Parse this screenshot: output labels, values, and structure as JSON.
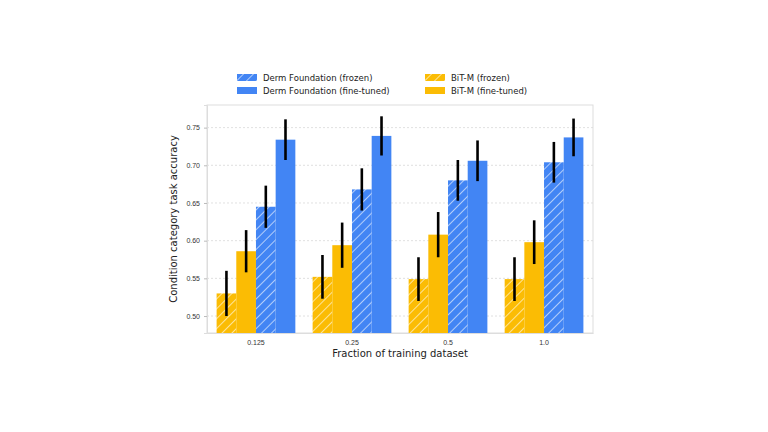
{
  "chart_data": {
    "type": "bar",
    "x_label": "Fraction of training dataset",
    "y_label": "Condition category task accuracy",
    "categories": [
      "0.125",
      "0.25",
      "0.5",
      "1.0"
    ],
    "series": [
      {
        "name": "BiT-M (frozen)",
        "color": "#fbbc04",
        "marker": "hatch",
        "values": [
          0.53,
          0.552,
          0.549,
          0.549
        ],
        "errors": [
          0.03,
          0.029,
          0.029,
          0.029
        ]
      },
      {
        "name": "BiT-M (fine-tuned)",
        "color": "#fbbc04",
        "values": [
          0.586,
          0.594,
          0.608,
          0.598
        ],
        "errors": [
          0.028,
          0.03,
          0.03,
          0.029
        ]
      },
      {
        "name": "Derm Foundation (frozen)",
        "color": "#4285f4",
        "marker": "hatch",
        "values": [
          0.645,
          0.668,
          0.68,
          0.704
        ],
        "errors": [
          0.028,
          0.028,
          0.027,
          0.027
        ]
      },
      {
        "name": "Derm Foundation (fine-tuned)",
        "color": "#4285f4",
        "values": [
          0.734,
          0.739,
          0.706,
          0.737
        ],
        "errors": [
          0.027,
          0.026,
          0.027,
          0.025
        ]
      }
    ],
    "ylim": [
      0.4775,
      0.78
    ],
    "yticks": [
      {
        "value": 0.5,
        "label": "0.50"
      },
      {
        "value": 0.55,
        "label": "0.55"
      },
      {
        "value": 0.6,
        "label": "0.60"
      },
      {
        "value": 0.65,
        "label": "0.65"
      },
      {
        "value": 0.7,
        "label": "0.70"
      },
      {
        "value": 0.75,
        "label": "0.75"
      }
    ],
    "grid": true,
    "legend": "top"
  }
}
